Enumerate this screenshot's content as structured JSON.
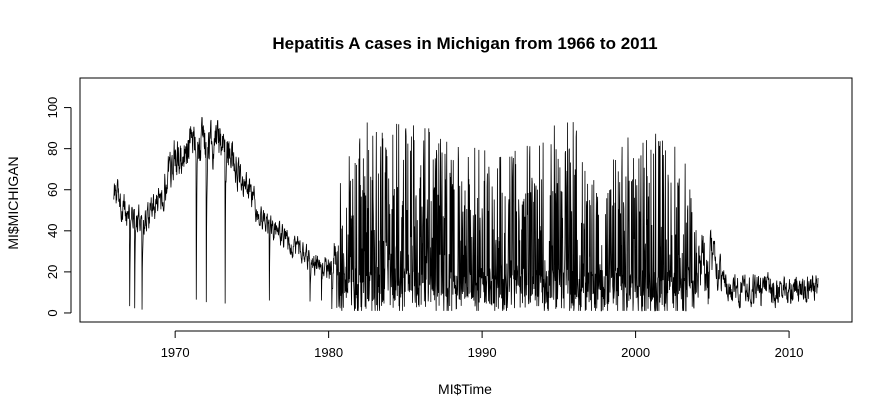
{
  "chart_data": {
    "type": "line",
    "title": "Hepatitis A cases in Michigan from 1966 to 2011",
    "xlabel": "MI$Time",
    "ylabel": "MI$MICHIGAN",
    "xlim": [
      1963.8,
      2014.1
    ],
    "ylim": [
      -4.4,
      114.4
    ],
    "x_ticks": [
      1970,
      1980,
      1990,
      2000,
      2010
    ],
    "y_ticks": [
      0,
      20,
      40,
      60,
      80,
      100
    ],
    "x_tick_labels": [
      "1970",
      "1980",
      "1990",
      "2000",
      "2010"
    ],
    "y_tick_labels": [
      "0",
      "20",
      "40",
      "60",
      "80",
      "100"
    ],
    "grid": false,
    "series": [
      {
        "color": "#000000",
        "x_range": [
          1966.0,
          2011.9
        ],
        "step_years": 0.0192,
        "envelope": {
          "x": [
            1966.0,
            1966.3,
            1967.0,
            1968.0,
            1969.0,
            1970.0,
            1971.0,
            1972.0,
            1973.0,
            1974.0,
            1975.0,
            1976.0,
            1977.0,
            1978.0,
            1979.0,
            1980.0,
            1981.0,
            1982.0,
            1984.0,
            1986.0,
            1988.0,
            1990.0,
            1992.0,
            1994.0,
            1996.0,
            1997.0,
            1998.0,
            1999.0,
            2000.0,
            2002.0,
            2003.0,
            2004.0,
            2005.0,
            2006.0,
            2008.0,
            2010.0,
            2011.0,
            2011.9
          ],
          "center": [
            62,
            55,
            47,
            44,
            55,
            78,
            80,
            82,
            80,
            72,
            55,
            42,
            37,
            31,
            25,
            22,
            35,
            45,
            44,
            45,
            40,
            38,
            40,
            42,
            45,
            30,
            30,
            45,
            38,
            40,
            35,
            28,
            22,
            12,
            11,
            12,
            12,
            12
          ],
          "spread": [
            22,
            12,
            12,
            12,
            14,
            18,
            18,
            18,
            18,
            18,
            12,
            10,
            10,
            10,
            10,
            12,
            40,
            48,
            48,
            48,
            42,
            42,
            42,
            48,
            50,
            35,
            35,
            50,
            48,
            48,
            45,
            30,
            22,
            12,
            12,
            12,
            12,
            12
          ]
        }
      }
    ]
  }
}
